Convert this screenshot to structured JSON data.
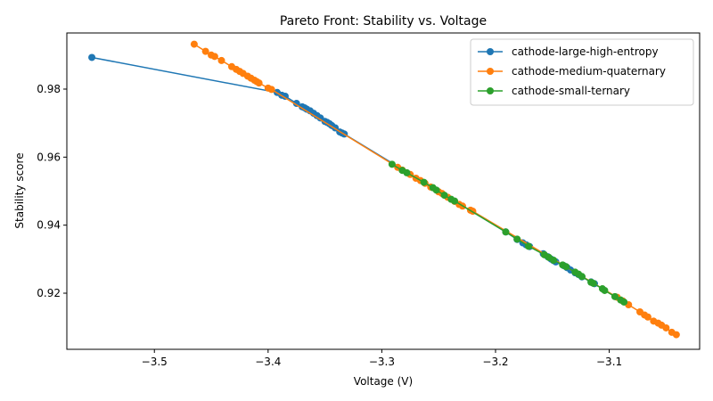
{
  "chart_data": {
    "type": "line",
    "title": "Pareto Front: Stability vs. Voltage",
    "xlabel": "Voltage (V)",
    "ylabel": "Stability score",
    "xlim": [
      -3.577,
      -3.0205
    ],
    "ylim": [
      0.9035,
      0.9965
    ],
    "xticks": [
      -3.5,
      -3.4,
      -3.3,
      -3.2,
      -3.1
    ],
    "xtick_labels": [
      "−3.5",
      "−3.4",
      "−3.3",
      "−3.2",
      "−3.1"
    ],
    "yticks": [
      0.92,
      0.94,
      0.96,
      0.98
    ],
    "ytick_labels": [
      "0.92",
      "0.94",
      "0.96",
      "0.98"
    ],
    "grid": false,
    "legend_position": "top-right",
    "series": [
      {
        "name": "cathode-large-high-entropy",
        "color": "#1f77b4",
        "points": [
          [
            -3.555,
            0.9893
          ],
          [
            -3.392,
            0.979
          ],
          [
            -3.388,
            0.9782
          ],
          [
            -3.385,
            0.9779
          ],
          [
            -3.375,
            0.9758
          ],
          [
            -3.37,
            0.9748
          ],
          [
            -3.368,
            0.9745
          ],
          [
            -3.366,
            0.9741
          ],
          [
            -3.363,
            0.9736
          ],
          [
            -3.36,
            0.9729
          ],
          [
            -3.357,
            0.9722
          ],
          [
            -3.354,
            0.9715
          ],
          [
            -3.35,
            0.9705
          ],
          [
            -3.348,
            0.9702
          ],
          [
            -3.346,
            0.9698
          ],
          [
            -3.344,
            0.9693
          ],
          [
            -3.341,
            0.9686
          ],
          [
            -3.337,
            0.9674
          ],
          [
            -3.335,
            0.9671
          ],
          [
            -3.333,
            0.9668
          ],
          [
            -3.191,
            0.938
          ],
          [
            -3.181,
            0.9358
          ],
          [
            -3.176,
            0.9348
          ],
          [
            -3.173,
            0.9342
          ],
          [
            -3.17,
            0.9337
          ],
          [
            -3.158,
            0.9316
          ],
          [
            -3.154,
            0.9307
          ],
          [
            -3.151,
            0.93
          ],
          [
            -3.149,
            0.9296
          ],
          [
            -3.147,
            0.9292
          ],
          [
            -3.14,
            0.9281
          ],
          [
            -3.137,
            0.9275
          ],
          [
            -3.134,
            0.9268
          ],
          [
            -3.13,
            0.926
          ],
          [
            -3.127,
            0.9255
          ],
          [
            -3.124,
            0.9248
          ],
          [
            -3.116,
            0.9233
          ],
          [
            -3.113,
            0.9228
          ]
        ]
      },
      {
        "name": "cathode-medium-quaternary",
        "color": "#ff7f0e",
        "points": [
          [
            -3.465,
            0.9932
          ],
          [
            -3.455,
            0.9911
          ],
          [
            -3.45,
            0.99
          ],
          [
            -3.447,
            0.9896
          ],
          [
            -3.441,
            0.9884
          ],
          [
            -3.432,
            0.9866
          ],
          [
            -3.428,
            0.9858
          ],
          [
            -3.425,
            0.9852
          ],
          [
            -3.422,
            0.9846
          ],
          [
            -3.418,
            0.9838
          ],
          [
            -3.415,
            0.9832
          ],
          [
            -3.412,
            0.9826
          ],
          [
            -3.41,
            0.9822
          ],
          [
            -3.408,
            0.9818
          ],
          [
            -3.4,
            0.9803
          ],
          [
            -3.397,
            0.9799
          ],
          [
            -3.286,
            0.957
          ],
          [
            -3.282,
            0.9562
          ],
          [
            -3.275,
            0.9549
          ],
          [
            -3.27,
            0.9538
          ],
          [
            -3.266,
            0.9531
          ],
          [
            -3.262,
            0.9523
          ],
          [
            -3.257,
            0.9512
          ],
          [
            -3.25,
            0.9498
          ],
          [
            -3.247,
            0.9493
          ],
          [
            -3.242,
            0.9482
          ],
          [
            -3.236,
            0.947
          ],
          [
            -3.232,
            0.9461
          ],
          [
            -3.229,
            0.9456
          ],
          [
            -3.222,
            0.9444
          ],
          [
            -3.22,
            0.9441
          ],
          [
            -3.093,
            0.9188
          ],
          [
            -3.088,
            0.9177
          ],
          [
            -3.083,
            0.9166
          ],
          [
            -3.073,
            0.9145
          ],
          [
            -3.069,
            0.9136
          ],
          [
            -3.066,
            0.913
          ],
          [
            -3.061,
            0.9118
          ],
          [
            -3.057,
            0.9112
          ],
          [
            -3.054,
            0.9106
          ],
          [
            -3.05,
            0.9098
          ],
          [
            -3.045,
            0.9085
          ],
          [
            -3.041,
            0.9078
          ]
        ]
      },
      {
        "name": "cathode-small-ternary",
        "color": "#2ca02c",
        "points": [
          [
            -3.291,
            0.9579
          ],
          [
            -3.282,
            0.9561
          ],
          [
            -3.278,
            0.9554
          ],
          [
            -3.263,
            0.9526
          ],
          [
            -3.255,
            0.951
          ],
          [
            -3.252,
            0.9503
          ],
          [
            -3.245,
            0.9488
          ],
          [
            -3.239,
            0.9476
          ],
          [
            -3.236,
            0.9471
          ],
          [
            -3.191,
            0.938
          ],
          [
            -3.181,
            0.9359
          ],
          [
            -3.171,
            0.9338
          ],
          [
            -3.157,
            0.9313
          ],
          [
            -3.153,
            0.9305
          ],
          [
            -3.149,
            0.9297
          ],
          [
            -3.141,
            0.9283
          ],
          [
            -3.138,
            0.9278
          ],
          [
            -3.13,
            0.9262
          ],
          [
            -3.127,
            0.9256
          ],
          [
            -3.124,
            0.9249
          ],
          [
            -3.116,
            0.9232
          ],
          [
            -3.114,
            0.9229
          ],
          [
            -3.106,
            0.9213
          ],
          [
            -3.104,
            0.9208
          ],
          [
            -3.095,
            0.919
          ],
          [
            -3.09,
            0.918
          ],
          [
            -3.087,
            0.9174
          ]
        ]
      }
    ]
  }
}
